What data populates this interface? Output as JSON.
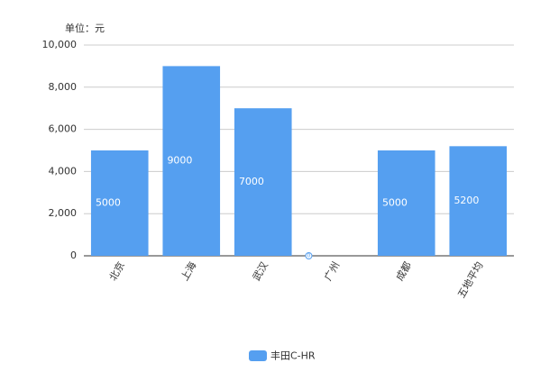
{
  "chart_data": {
    "type": "bar",
    "y_axis_label": "单位：元",
    "categories": [
      "北京",
      "上海",
      "武汉",
      "广州",
      "成都",
      "五地平均"
    ],
    "series": [
      {
        "name": "丰田C-HR",
        "color": "#559ff0",
        "values": [
          5000,
          9000,
          7000,
          0,
          5000,
          5200
        ]
      }
    ],
    "ylim": [
      0,
      10000
    ],
    "yticks": [
      0,
      {
        "value": 2000,
        "label": "2,000"
      },
      {
        "value": 4000,
        "label": "4,000"
      },
      {
        "value": 6000,
        "label": "6,000"
      },
      {
        "value": 8000,
        "label": "8,000"
      },
      {
        "value": 10000,
        "label": "10,000"
      }
    ],
    "grid": true,
    "legend": "bottom"
  }
}
